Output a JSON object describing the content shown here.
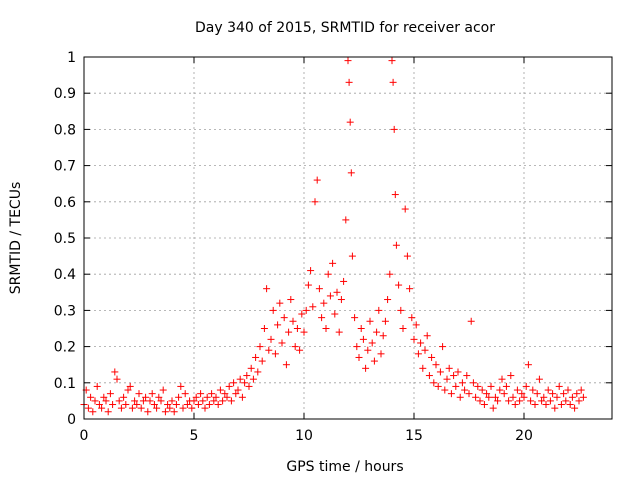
{
  "chart_data": {
    "type": "scatter",
    "title": "Day 340 of 2015, SRMTID for receiver acor",
    "xlabel": "GPS time / hours",
    "ylabel": "SRMTID / TECUs",
    "xlim": [
      0,
      24
    ],
    "ylim": [
      0,
      1
    ],
    "xticks": [
      0,
      5,
      10,
      15,
      20
    ],
    "xtick_labels": [
      "0",
      "5",
      "10",
      "15",
      "20"
    ],
    "yticks": [
      0,
      0.1,
      0.2,
      0.3,
      0.4,
      0.5,
      0.6,
      0.7,
      0.8,
      0.9,
      1
    ],
    "ytick_labels": [
      "0",
      "0.1",
      "0.2",
      "0.3",
      "0.4",
      "0.5",
      "0.6",
      "0.7",
      "0.8",
      "0.9",
      "1"
    ],
    "grid": true,
    "marker": "+",
    "color": "#ff0000",
    "series": [
      {
        "name": "SRMTID",
        "points": [
          [
            0.0,
            0.04
          ],
          [
            0.1,
            0.08
          ],
          [
            0.2,
            0.03
          ],
          [
            0.3,
            0.06
          ],
          [
            0.4,
            0.02
          ],
          [
            0.5,
            0.05
          ],
          [
            0.6,
            0.09
          ],
          [
            0.7,
            0.04
          ],
          [
            0.8,
            0.03
          ],
          [
            0.9,
            0.06
          ],
          [
            1.0,
            0.05
          ],
          [
            1.1,
            0.02
          ],
          [
            1.2,
            0.07
          ],
          [
            1.3,
            0.04
          ],
          [
            1.4,
            0.13
          ],
          [
            1.5,
            0.11
          ],
          [
            1.6,
            0.05
          ],
          [
            1.7,
            0.03
          ],
          [
            1.8,
            0.06
          ],
          [
            1.9,
            0.04
          ],
          [
            2.0,
            0.08
          ],
          [
            2.1,
            0.09
          ],
          [
            2.2,
            0.03
          ],
          [
            2.3,
            0.05
          ],
          [
            2.4,
            0.04
          ],
          [
            2.5,
            0.07
          ],
          [
            2.6,
            0.03
          ],
          [
            2.7,
            0.05
          ],
          [
            2.8,
            0.06
          ],
          [
            2.9,
            0.02
          ],
          [
            3.0,
            0.05
          ],
          [
            3.1,
            0.07
          ],
          [
            3.2,
            0.04
          ],
          [
            3.3,
            0.03
          ],
          [
            3.4,
            0.06
          ],
          [
            3.5,
            0.05
          ],
          [
            3.6,
            0.08
          ],
          [
            3.7,
            0.02
          ],
          [
            3.8,
            0.04
          ],
          [
            3.9,
            0.03
          ],
          [
            4.0,
            0.05
          ],
          [
            4.1,
            0.02
          ],
          [
            4.2,
            0.04
          ],
          [
            4.3,
            0.06
          ],
          [
            4.4,
            0.09
          ],
          [
            4.5,
            0.03
          ],
          [
            4.6,
            0.07
          ],
          [
            4.7,
            0.04
          ],
          [
            4.8,
            0.05
          ],
          [
            4.9,
            0.03
          ],
          [
            5.0,
            0.05
          ],
          [
            5.1,
            0.06
          ],
          [
            5.2,
            0.04
          ],
          [
            5.3,
            0.07
          ],
          [
            5.4,
            0.05
          ],
          [
            5.5,
            0.03
          ],
          [
            5.6,
            0.06
          ],
          [
            5.7,
            0.04
          ],
          [
            5.8,
            0.07
          ],
          [
            5.9,
            0.05
          ],
          [
            6.0,
            0.06
          ],
          [
            6.1,
            0.04
          ],
          [
            6.2,
            0.08
          ],
          [
            6.3,
            0.05
          ],
          [
            6.4,
            0.07
          ],
          [
            6.5,
            0.06
          ],
          [
            6.6,
            0.09
          ],
          [
            6.7,
            0.05
          ],
          [
            6.8,
            0.1
          ],
          [
            6.9,
            0.07
          ],
          [
            7.0,
            0.08
          ],
          [
            7.1,
            0.11
          ],
          [
            7.2,
            0.06
          ],
          [
            7.3,
            0.1
          ],
          [
            7.4,
            0.12
          ],
          [
            7.5,
            0.09
          ],
          [
            7.6,
            0.14
          ],
          [
            7.7,
            0.11
          ],
          [
            7.8,
            0.17
          ],
          [
            7.9,
            0.13
          ],
          [
            8.0,
            0.2
          ],
          [
            8.1,
            0.16
          ],
          [
            8.2,
            0.25
          ],
          [
            8.3,
            0.36
          ],
          [
            8.4,
            0.19
          ],
          [
            8.5,
            0.22
          ],
          [
            8.6,
            0.3
          ],
          [
            8.7,
            0.18
          ],
          [
            8.8,
            0.26
          ],
          [
            8.9,
            0.32
          ],
          [
            9.0,
            0.21
          ],
          [
            9.1,
            0.28
          ],
          [
            9.2,
            0.15
          ],
          [
            9.3,
            0.24
          ],
          [
            9.4,
            0.33
          ],
          [
            9.5,
            0.27
          ],
          [
            9.6,
            0.2
          ],
          [
            9.7,
            0.25
          ],
          [
            9.8,
            0.19
          ],
          [
            9.9,
            0.29
          ],
          [
            10.0,
            0.24
          ],
          [
            10.1,
            0.3
          ],
          [
            10.2,
            0.37
          ],
          [
            10.3,
            0.41
          ],
          [
            10.4,
            0.31
          ],
          [
            10.5,
            0.6
          ],
          [
            10.6,
            0.66
          ],
          [
            10.7,
            0.36
          ],
          [
            10.8,
            0.28
          ],
          [
            10.9,
            0.32
          ],
          [
            11.0,
            0.25
          ],
          [
            11.1,
            0.4
          ],
          [
            11.2,
            0.34
          ],
          [
            11.3,
            0.43
          ],
          [
            11.4,
            0.29
          ],
          [
            11.5,
            0.35
          ],
          [
            11.6,
            0.24
          ],
          [
            11.7,
            0.33
          ],
          [
            11.8,
            0.38
          ],
          [
            11.9,
            0.55
          ],
          [
            12.0,
            0.99
          ],
          [
            12.05,
            0.93
          ],
          [
            12.1,
            0.82
          ],
          [
            12.15,
            0.68
          ],
          [
            12.2,
            0.45
          ],
          [
            12.3,
            0.28
          ],
          [
            12.4,
            0.2
          ],
          [
            12.5,
            0.17
          ],
          [
            12.6,
            0.25
          ],
          [
            12.7,
            0.22
          ],
          [
            12.8,
            0.14
          ],
          [
            12.9,
            0.19
          ],
          [
            13.0,
            0.27
          ],
          [
            13.1,
            0.21
          ],
          [
            13.2,
            0.16
          ],
          [
            13.3,
            0.24
          ],
          [
            13.4,
            0.3
          ],
          [
            13.5,
            0.18
          ],
          [
            13.6,
            0.23
          ],
          [
            13.7,
            0.27
          ],
          [
            13.8,
            0.33
          ],
          [
            13.9,
            0.4
          ],
          [
            14.0,
            0.99
          ],
          [
            14.05,
            0.93
          ],
          [
            14.1,
            0.8
          ],
          [
            14.15,
            0.62
          ],
          [
            14.2,
            0.48
          ],
          [
            14.3,
            0.37
          ],
          [
            14.4,
            0.3
          ],
          [
            14.5,
            0.25
          ],
          [
            14.6,
            0.58
          ],
          [
            14.7,
            0.45
          ],
          [
            14.8,
            0.36
          ],
          [
            14.9,
            0.28
          ],
          [
            15.0,
            0.22
          ],
          [
            15.1,
            0.26
          ],
          [
            15.2,
            0.18
          ],
          [
            15.3,
            0.21
          ],
          [
            15.4,
            0.14
          ],
          [
            15.5,
            0.19
          ],
          [
            15.6,
            0.23
          ],
          [
            15.7,
            0.12
          ],
          [
            15.8,
            0.17
          ],
          [
            15.9,
            0.1
          ],
          [
            16.0,
            0.15
          ],
          [
            16.1,
            0.09
          ],
          [
            16.2,
            0.13
          ],
          [
            16.3,
            0.2
          ],
          [
            16.4,
            0.08
          ],
          [
            16.5,
            0.11
          ],
          [
            16.6,
            0.14
          ],
          [
            16.7,
            0.07
          ],
          [
            16.8,
            0.12
          ],
          [
            16.9,
            0.09
          ],
          [
            17.0,
            0.13
          ],
          [
            17.1,
            0.06
          ],
          [
            17.2,
            0.1
          ],
          [
            17.3,
            0.08
          ],
          [
            17.4,
            0.12
          ],
          [
            17.5,
            0.07
          ],
          [
            17.6,
            0.27
          ],
          [
            17.7,
            0.1
          ],
          [
            17.8,
            0.06
          ],
          [
            17.9,
            0.09
          ],
          [
            18.0,
            0.05
          ],
          [
            18.1,
            0.08
          ],
          [
            18.2,
            0.04
          ],
          [
            18.3,
            0.07
          ],
          [
            18.4,
            0.06
          ],
          [
            18.5,
            0.09
          ],
          [
            18.6,
            0.03
          ],
          [
            18.7,
            0.06
          ],
          [
            18.8,
            0.05
          ],
          [
            18.9,
            0.08
          ],
          [
            19.0,
            0.11
          ],
          [
            19.1,
            0.07
          ],
          [
            19.2,
            0.09
          ],
          [
            19.3,
            0.05
          ],
          [
            19.4,
            0.12
          ],
          [
            19.5,
            0.06
          ],
          [
            19.6,
            0.04
          ],
          [
            19.7,
            0.08
          ],
          [
            19.8,
            0.05
          ],
          [
            19.9,
            0.07
          ],
          [
            20.0,
            0.06
          ],
          [
            20.1,
            0.09
          ],
          [
            20.2,
            0.15
          ],
          [
            20.3,
            0.05
          ],
          [
            20.4,
            0.08
          ],
          [
            20.5,
            0.04
          ],
          [
            20.6,
            0.07
          ],
          [
            20.7,
            0.11
          ],
          [
            20.8,
            0.05
          ],
          [
            20.9,
            0.06
          ],
          [
            21.0,
            0.04
          ],
          [
            21.1,
            0.08
          ],
          [
            21.2,
            0.05
          ],
          [
            21.3,
            0.07
          ],
          [
            21.4,
            0.03
          ],
          [
            21.5,
            0.06
          ],
          [
            21.6,
            0.09
          ],
          [
            21.7,
            0.04
          ],
          [
            21.8,
            0.07
          ],
          [
            21.9,
            0.05
          ],
          [
            22.0,
            0.08
          ],
          [
            22.1,
            0.04
          ],
          [
            22.2,
            0.06
          ],
          [
            22.3,
            0.03
          ],
          [
            22.4,
            0.07
          ],
          [
            22.5,
            0.05
          ],
          [
            22.6,
            0.08
          ],
          [
            22.7,
            0.06
          ]
        ]
      }
    ]
  }
}
